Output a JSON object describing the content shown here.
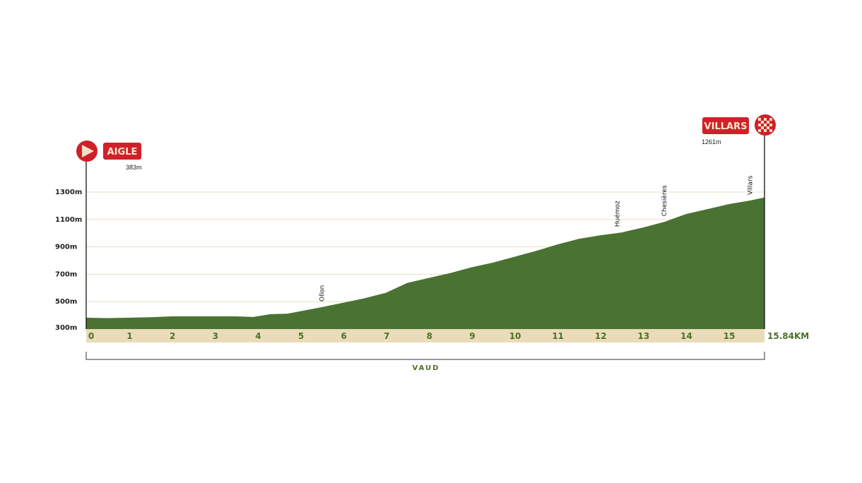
{
  "chart_data": {
    "type": "area",
    "xlim": [
      0,
      15.84
    ],
    "ylim": [
      300,
      1300
    ],
    "x_ticks": [
      "0",
      "1",
      "2",
      "3",
      "4",
      "5",
      "6",
      "7",
      "8",
      "9",
      "10",
      "11",
      "12",
      "13",
      "14",
      "15"
    ],
    "x_end_label": "15.84KM",
    "y_ticks": [
      "300m",
      "500m",
      "700m",
      "900m",
      "1100m",
      "1300m"
    ],
    "y_tick_values": [
      300,
      500,
      700,
      900,
      1100,
      1300
    ],
    "grid": true,
    "region_label": "VAUD",
    "start": {
      "name": "AIGLE",
      "elevation": "383m"
    },
    "finish": {
      "name": "VILLARS",
      "elevation": "1261m"
    },
    "places": [
      {
        "name": "Ollon",
        "km": 5.5
      },
      {
        "name": "Huémoz",
        "km": 12.4
      },
      {
        "name": "Chesières",
        "km": 13.5
      },
      {
        "name": "Villars",
        "km": 15.5
      }
    ],
    "x": [
      0,
      0.5,
      1,
      1.5,
      2,
      2.5,
      3,
      3.5,
      3.9,
      4.3,
      4.7,
      5,
      5.5,
      6,
      6.5,
      7,
      7.5,
      8,
      8.5,
      9,
      9.5,
      10,
      10.5,
      11,
      11.5,
      12,
      12.5,
      13,
      13.5,
      14,
      14.5,
      15,
      15.5,
      15.84
    ],
    "y": [
      383,
      380,
      383,
      386,
      393,
      393,
      393,
      393,
      388,
      409,
      412,
      430,
      460,
      492,
      525,
      565,
      637,
      673,
      709,
      751,
      785,
      828,
      870,
      917,
      958,
      984,
      1005,
      1041,
      1082,
      1139,
      1175,
      1212,
      1238,
      1261
    ],
    "colors": {
      "fill": "#4a7332",
      "axis_band": "#eadcb8",
      "accent": "#d0202a",
      "tick_text": "#4f6f2a",
      "grid": "#e8dfc6"
    }
  }
}
